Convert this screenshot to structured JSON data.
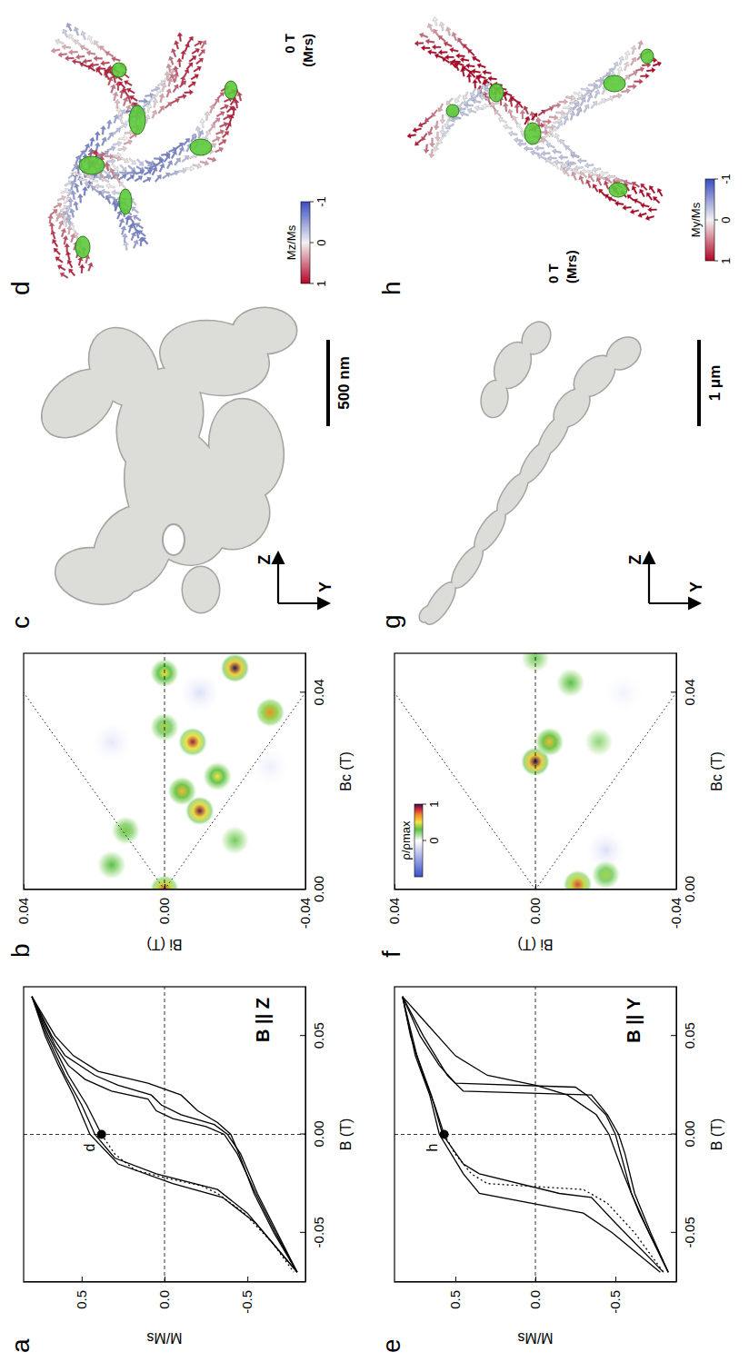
{
  "chart_data": [
    {
      "type": "line",
      "panel_label": "a",
      "title": "B || Z",
      "x_label": "B (T)",
      "y_label": "M/Ms",
      "xlim": [
        -0.075,
        0.075
      ],
      "ylim": [
        -0.85,
        0.85
      ],
      "xticks": [
        -0.05,
        {
          "value": 0,
          "label": "0.00"
        },
        0.05
      ],
      "yticks": [
        -0.5,
        {
          "value": 0,
          "label": "0.0"
        },
        0.5
      ],
      "series": [
        {
          "color": "#000000",
          "line_style": "dotted",
          "x": [
            0.0,
            -0.01,
            -0.018,
            -0.022,
            -0.026,
            -0.03,
            -0.04,
            -0.055,
            -0.07
          ],
          "values": [
            0.38,
            0.3,
            0.18,
            0.0,
            -0.22,
            -0.32,
            -0.48,
            -0.65,
            -0.78
          ]
        },
        {
          "color": "#000000",
          "line_style": "solid",
          "x": [
            0.07,
            0.05,
            0.03,
            0.015,
            0.0
          ],
          "values": [
            0.8,
            0.7,
            0.58,
            0.47,
            0.38
          ]
        },
        {
          "color": "#000000",
          "line_style": "solid",
          "x": [
            0.07,
            0.05,
            0.03,
            0.015,
            0.0,
            -0.012,
            -0.02,
            -0.028,
            -0.04,
            -0.06,
            -0.07
          ],
          "values": [
            0.8,
            0.71,
            0.6,
            0.5,
            0.42,
            0.3,
            0.05,
            -0.32,
            -0.5,
            -0.7,
            -0.8
          ]
        },
        {
          "color": "#000000",
          "line_style": "solid",
          "x": [
            0.07,
            0.05,
            0.035,
            0.02,
            0.0,
            -0.015,
            -0.025,
            -0.032,
            -0.045,
            -0.07
          ],
          "values": [
            0.8,
            0.72,
            0.64,
            0.55,
            0.45,
            0.28,
            -0.05,
            -0.35,
            -0.55,
            -0.8
          ]
        },
        {
          "color": "#000000",
          "line_style": "solid",
          "x": [
            -0.07,
            -0.05,
            -0.03,
            -0.01,
            0.0,
            0.005,
            0.01,
            0.015,
            0.02,
            0.025,
            0.03,
            0.04,
            0.05,
            0.07
          ],
          "values": [
            -0.8,
            -0.68,
            -0.56,
            -0.46,
            -0.38,
            -0.3,
            -0.1,
            0.02,
            0.08,
            0.28,
            0.42,
            0.6,
            0.68,
            0.8
          ]
        },
        {
          "color": "#000000",
          "line_style": "solid",
          "x": [
            -0.07,
            -0.05,
            -0.03,
            -0.01,
            0.0,
            0.004,
            0.008,
            0.012,
            0.018,
            0.022,
            0.028,
            0.035,
            0.045,
            0.07
          ],
          "values": [
            -0.8,
            -0.67,
            -0.55,
            -0.44,
            -0.36,
            -0.25,
            -0.05,
            0.05,
            0.1,
            0.32,
            0.48,
            0.58,
            0.66,
            0.8
          ]
        },
        {
          "color": "#000000",
          "line_style": "solid",
          "x": [
            -0.07,
            -0.05,
            -0.03,
            -0.01,
            0.0,
            0.006,
            0.012,
            0.02,
            0.026,
            0.032,
            0.04,
            0.05,
            0.07
          ],
          "values": [
            -0.8,
            -0.66,
            -0.54,
            -0.45,
            -0.4,
            -0.32,
            -0.2,
            -0.1,
            0.1,
            0.4,
            0.55,
            0.66,
            0.8
          ]
        }
      ],
      "annotations": [
        {
          "text": "d",
          "x": 0.0,
          "y": 0.38
        }
      ]
    },
    {
      "type": "heatmap",
      "panel_label": "b",
      "x_label": "Bc (T)",
      "y_label": "Bi (T)",
      "xlim": [
        0,
        0.048
      ],
      "ylim": [
        -0.04,
        0.04
      ],
      "xticks": [
        {
          "value": 0,
          "label": "0.00"
        },
        0.04
      ],
      "yticks": [
        -0.04,
        {
          "value": 0,
          "label": "0.00"
        },
        0.04
      ],
      "peaks": {
        "x": [
          0.0,
          0.012,
          0.005,
          0.016,
          0.02,
          0.023,
          0.03,
          0.033,
          0.036,
          0.045,
          0.044,
          0.01,
          0.04,
          0.03,
          0.025
        ],
        "y": [
          0.0,
          0.011,
          0.015,
          -0.01,
          -0.005,
          -0.015,
          -0.008,
          0.0,
          -0.03,
          -0.02,
          0.0,
          -0.02,
          -0.01,
          0.015,
          -0.03
        ],
        "rho": [
          0.8,
          0.35,
          0.3,
          0.95,
          0.6,
          0.5,
          0.9,
          0.4,
          0.7,
          1.0,
          0.5,
          0.25,
          -0.2,
          -0.15,
          -0.1
        ]
      }
    },
    {
      "type": "line",
      "panel_label": "e",
      "title": "B || Y",
      "x_label": "B (T)",
      "y_label": "M/Ms",
      "xlim": [
        -0.075,
        0.075
      ],
      "ylim": [
        -0.88,
        0.88
      ],
      "xticks": [
        -0.05,
        {
          "value": 0,
          "label": "0.00"
        },
        0.05
      ],
      "yticks": [
        -0.5,
        {
          "value": 0,
          "label": "0.0"
        },
        0.5
      ],
      "series": [
        {
          "color": "#000000",
          "line_style": "dotted",
          "x": [
            0.0,
            -0.01,
            -0.02,
            -0.025,
            -0.028,
            -0.035,
            -0.05,
            -0.07
          ],
          "values": [
            0.57,
            0.5,
            0.4,
            0.3,
            -0.3,
            -0.45,
            -0.62,
            -0.8
          ]
        },
        {
          "color": "#000000",
          "line_style": "solid",
          "x": [
            0.07,
            0.05,
            0.03,
            0.015,
            0.0
          ],
          "values": [
            0.83,
            0.78,
            0.7,
            0.63,
            0.57
          ]
        },
        {
          "color": "#000000",
          "line_style": "solid",
          "x": [
            0.07,
            0.04,
            0.02,
            0.0,
            -0.015,
            -0.02,
            -0.03,
            -0.032,
            -0.045,
            -0.07
          ],
          "values": [
            0.83,
            0.74,
            0.65,
            0.58,
            0.45,
            0.35,
            -0.15,
            -0.35,
            -0.5,
            -0.8
          ]
        },
        {
          "color": "#000000",
          "line_style": "solid",
          "x": [
            0.07,
            0.04,
            0.02,
            0.0,
            -0.02,
            -0.03,
            -0.04,
            -0.05,
            -0.07
          ],
          "values": [
            0.83,
            0.75,
            0.66,
            0.6,
            0.45,
            0.35,
            -0.3,
            -0.48,
            -0.78
          ]
        },
        {
          "color": "#000000",
          "line_style": "solid",
          "x": [
            -0.07,
            -0.05,
            -0.03,
            -0.01,
            0.0,
            0.01,
            0.02,
            0.022,
            0.03,
            0.05,
            0.07
          ],
          "values": [
            -0.83,
            -0.72,
            -0.62,
            -0.56,
            -0.52,
            -0.45,
            -0.35,
            0.45,
            0.55,
            0.7,
            0.83
          ]
        },
        {
          "color": "#000000",
          "line_style": "solid",
          "x": [
            -0.07,
            -0.05,
            -0.03,
            0.0,
            0.01,
            0.02,
            0.024,
            0.026,
            0.035,
            0.05,
            0.07
          ],
          "values": [
            -0.83,
            -0.71,
            -0.6,
            -0.5,
            -0.44,
            -0.32,
            -0.25,
            0.5,
            0.6,
            0.72,
            0.83
          ]
        },
        {
          "color": "#000000",
          "line_style": "solid",
          "x": [
            -0.07,
            -0.04,
            -0.02,
            0.0,
            0.01,
            0.02,
            0.025,
            0.03,
            0.04,
            0.06,
            0.07
          ],
          "values": [
            -0.83,
            -0.65,
            -0.55,
            -0.46,
            -0.38,
            -0.2,
            0.0,
            0.3,
            0.5,
            0.72,
            0.83
          ]
        }
      ],
      "annotations": [
        {
          "text": "h",
          "x": 0.0,
          "y": 0.57
        }
      ]
    },
    {
      "type": "heatmap",
      "panel_label": "f",
      "x_label": "Bc (T)",
      "y_label": "Bi (T)",
      "xlim": [
        0,
        0.048
      ],
      "ylim": [
        -0.04,
        0.04
      ],
      "xticks": [
        {
          "value": 0,
          "label": "0.00"
        },
        0.04
      ],
      "yticks": [
        -0.04,
        {
          "value": 0,
          "label": "0.00"
        },
        0.04
      ],
      "peaks": {
        "x": [
          0.026,
          0.03,
          0.001,
          0.003,
          0.042,
          0.047,
          0.03,
          0.008,
          0.04
        ],
        "y": [
          0.0,
          -0.004,
          -0.012,
          -0.02,
          -0.01,
          0.0,
          -0.018,
          -0.02,
          -0.025
        ],
        "rho": [
          1.0,
          0.6,
          0.8,
          0.4,
          0.3,
          0.25,
          0.2,
          -0.2,
          -0.08
        ]
      },
      "colorbar": {
        "label": "ρ/ρmax",
        "range": [
          -1,
          1
        ],
        "ticks": [
          0,
          1
        ]
      }
    }
  ],
  "renders": [
    {
      "panel_label": "c",
      "scale_bar": "500 nm",
      "axes": [
        "Z",
        "Y"
      ]
    },
    {
      "panel_label": "d",
      "field": "0 T",
      "state": "(Mrs)",
      "colorbar": {
        "label": "Mz/Ms",
        "range": [
          -1,
          1
        ],
        "ticks": [
          1,
          0,
          -1
        ]
      }
    },
    {
      "panel_label": "g",
      "scale_bar": "1 μm",
      "axes": [
        "Z",
        "Y"
      ]
    },
    {
      "panel_label": "h",
      "field": "0 T",
      "state": "(Mrs)",
      "colorbar": {
        "label": "My/Ms",
        "range": [
          -1,
          1
        ],
        "ticks": [
          1,
          0,
          -1
        ]
      }
    }
  ]
}
